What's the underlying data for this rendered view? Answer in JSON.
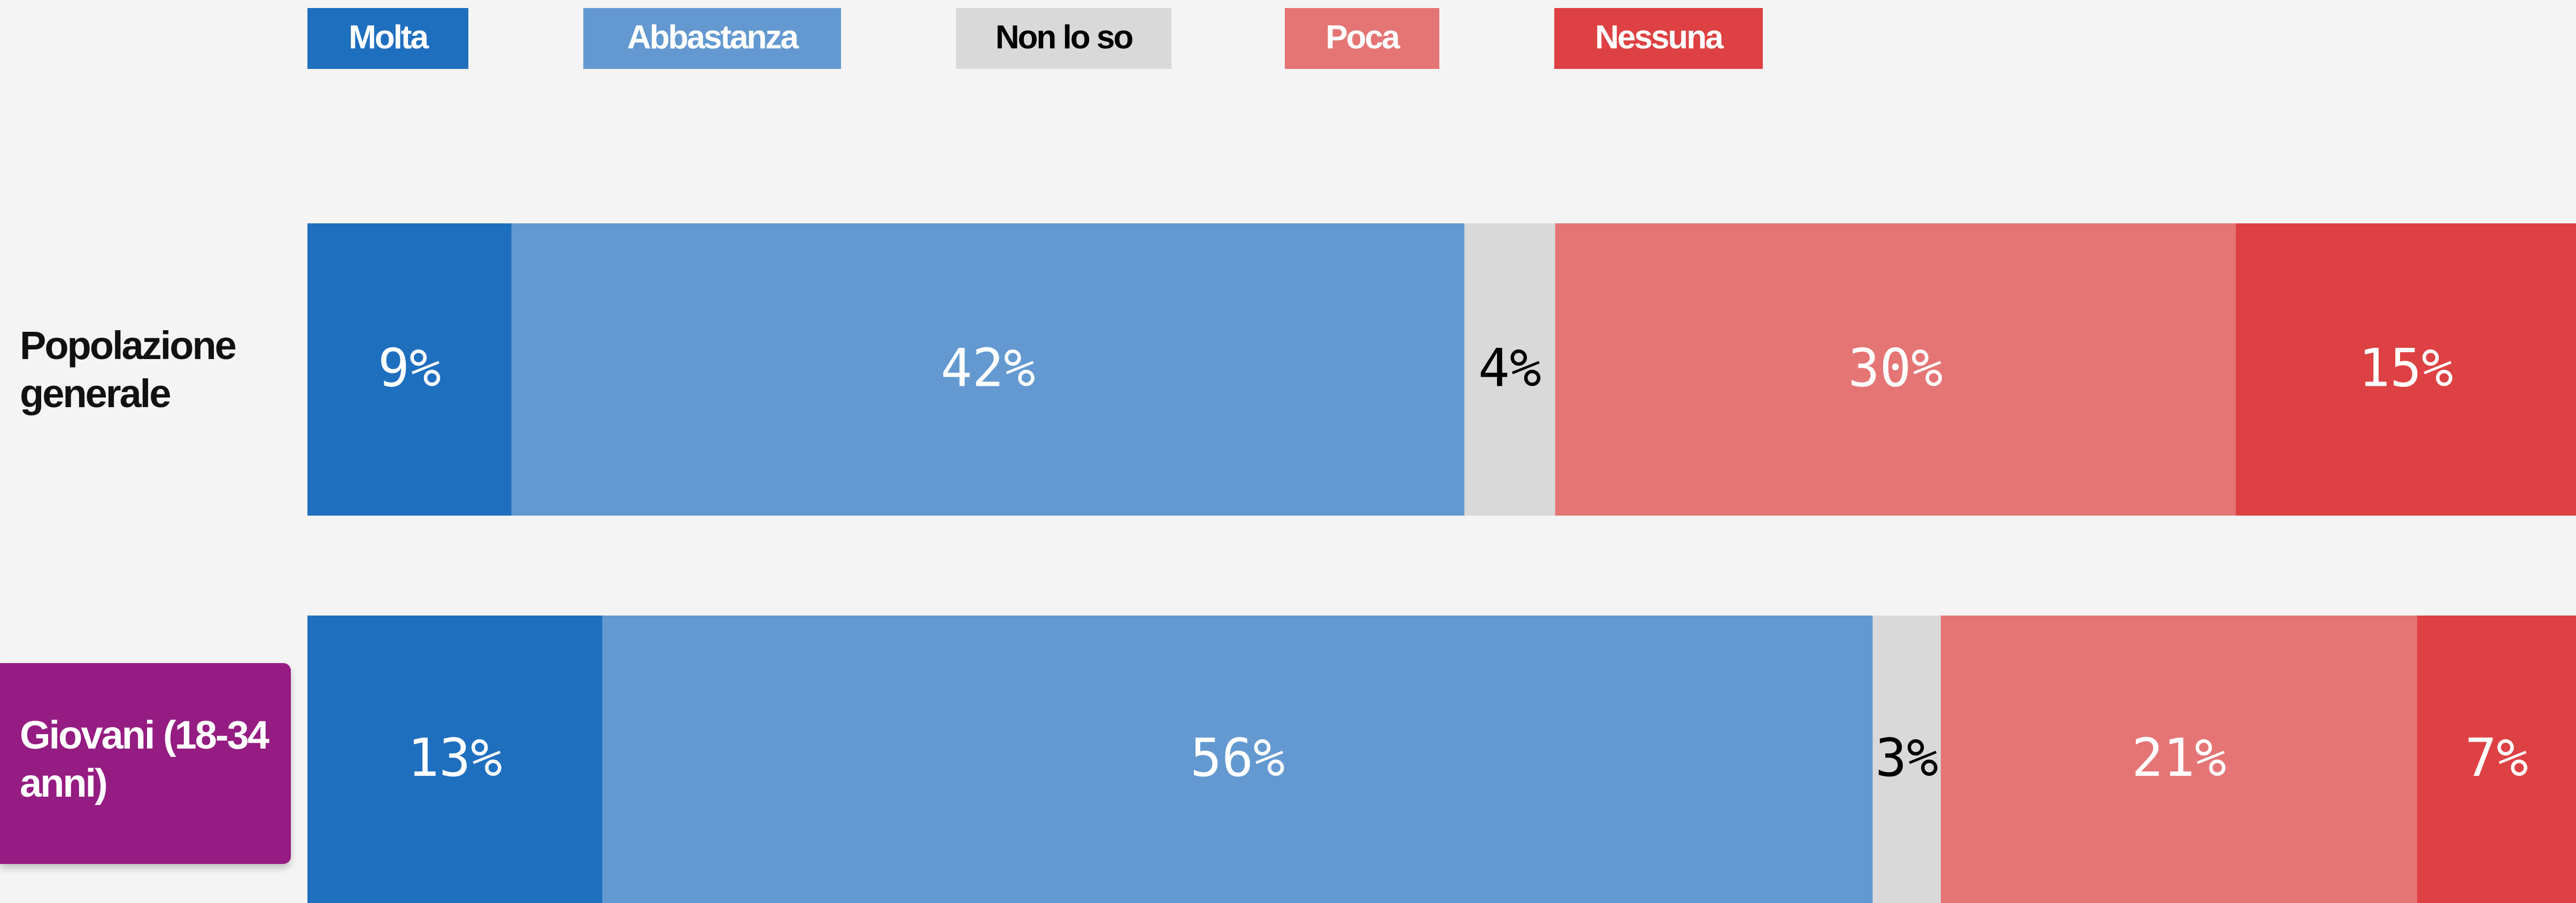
{
  "chart_data": {
    "type": "stacked_bar_horizontal",
    "categories": [
      "Popolazione generale",
      "Giovani (18-34 anni)"
    ],
    "xlim": [
      0,
      100
    ],
    "series": [
      {
        "name": "Molta",
        "color": "#1f6fbf",
        "values": [
          9,
          13
        ],
        "value_labels": [
          "9%",
          "13%"
        ]
      },
      {
        "name": "Abbastanza",
        "color": "#6399d0",
        "values": [
          42,
          56
        ],
        "value_labels": [
          "42%",
          "56%"
        ]
      },
      {
        "name": "Non lo so",
        "color": "#d9d9d9",
        "values": [
          4,
          3
        ],
        "value_labels": [
          "4%",
          "3%"
        ]
      },
      {
        "name": "Poca",
        "color": "#e57575",
        "values": [
          30,
          21
        ],
        "value_labels": [
          "30%",
          "21%"
        ]
      },
      {
        "name": "Nessuna",
        "color": "#dd4143",
        "values": [
          15,
          7
        ],
        "value_labels": [
          "15%",
          "7%"
        ]
      }
    ]
  }
}
